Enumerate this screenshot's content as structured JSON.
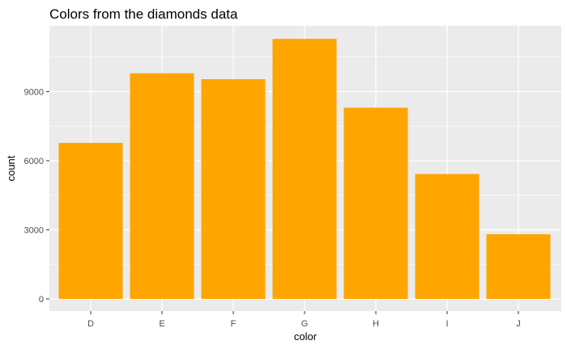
{
  "chart_data": {
    "type": "bar",
    "title": "Colors from the diamonds data",
    "xlabel": "color",
    "ylabel": "count",
    "categories": [
      "D",
      "E",
      "F",
      "G",
      "H",
      "I",
      "J"
    ],
    "values": [
      6775,
      9797,
      9542,
      11292,
      8304,
      5422,
      2808
    ],
    "ylim": [
      0,
      11857
    ],
    "y_ticks": [
      0,
      3000,
      6000,
      9000
    ],
    "y_tick_labels": [
      "0",
      "3000",
      "6000",
      "9000"
    ],
    "grid": true,
    "bar_color": "#FFA500",
    "panel_color": "#EBEBEB",
    "grid_color": "#FFFFFF"
  }
}
